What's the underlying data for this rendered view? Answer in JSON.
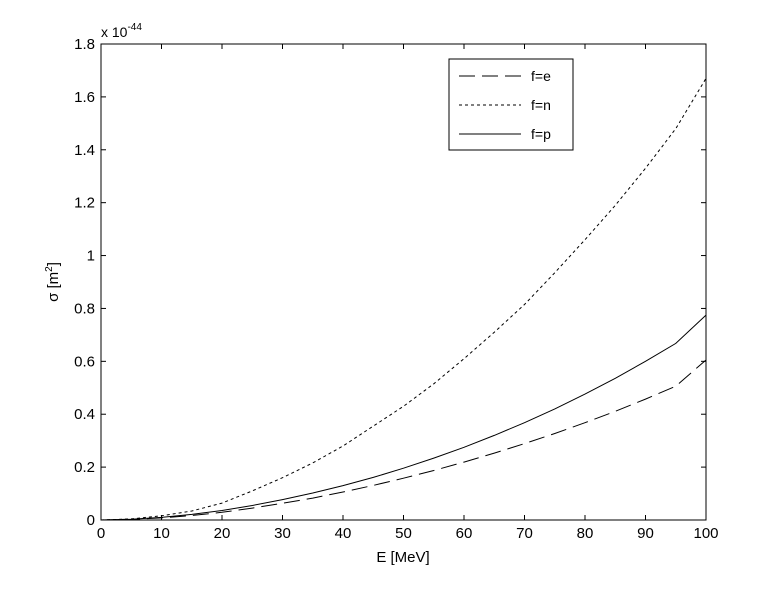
{
  "chart_data": {
    "type": "line",
    "xlabel": "E [MeV]",
    "ylabel_main": "σ [m",
    "ylabel_sup": "2",
    "ylabel_end": "]",
    "y_multiplier_base": "x 10",
    "y_multiplier_exp": "-44",
    "xlim": [
      0,
      100
    ],
    "ylim": [
      0,
      1.8
    ],
    "x_ticks": [
      0,
      10,
      20,
      30,
      40,
      50,
      60,
      70,
      80,
      90,
      100
    ],
    "y_ticks": [
      0,
      0.2,
      0.4,
      0.6,
      0.8,
      1,
      1.2,
      1.4,
      1.6,
      1.8
    ],
    "grid": false,
    "legend_position": "top-right",
    "x": [
      0,
      5,
      10,
      15,
      20,
      25,
      30,
      35,
      40,
      45,
      50,
      55,
      60,
      65,
      70,
      75,
      80,
      85,
      90,
      95,
      100
    ],
    "series": [
      {
        "name": "f=e",
        "style": "long-dash",
        "values": [
          0,
          0.002,
          0.008,
          0.017,
          0.029,
          0.045,
          0.063,
          0.083,
          0.106,
          0.131,
          0.158,
          0.187,
          0.219,
          0.253,
          0.289,
          0.327,
          0.368,
          0.411,
          0.457,
          0.506,
          0.605
        ]
      },
      {
        "name": "f=n",
        "style": "dotted",
        "values": [
          0,
          0.004,
          0.016,
          0.034,
          0.064,
          0.11,
          0.16,
          0.216,
          0.28,
          0.355,
          0.43,
          0.515,
          0.61,
          0.71,
          0.815,
          0.935,
          1.06,
          1.19,
          1.33,
          1.48,
          1.67
        ]
      },
      {
        "name": "f=p",
        "style": "solid",
        "values": [
          0,
          0.003,
          0.01,
          0.021,
          0.036,
          0.055,
          0.077,
          0.102,
          0.13,
          0.161,
          0.196,
          0.234,
          0.275,
          0.32,
          0.368,
          0.42,
          0.476,
          0.536,
          0.6,
          0.668,
          0.775
        ]
      }
    ]
  }
}
